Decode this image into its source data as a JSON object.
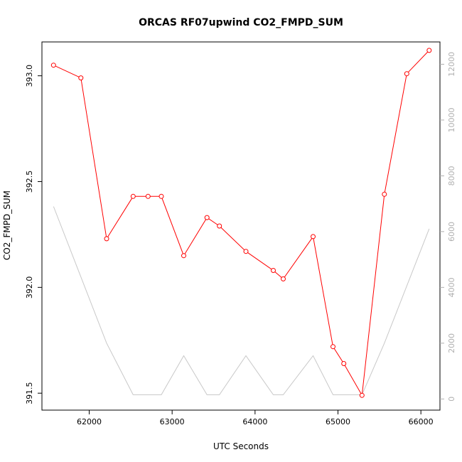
{
  "chart_data": {
    "type": "line",
    "title": "ORCAS RF07upwind CO2_FMPD_SUM",
    "xlabel": "UTC Seconds",
    "ylabel": "CO2_FMPD_SUM",
    "xlim": [
      61430,
      66230
    ],
    "ylim": [
      391.42,
      393.16
    ],
    "y2lim": [
      -400,
      12800
    ],
    "x_ticks": [
      62000,
      63000,
      64000,
      65000,
      66000
    ],
    "y_ticks": [
      391.5,
      392.0,
      392.5,
      393.0
    ],
    "y_tick_labels": [
      "391.5",
      "392.0",
      "392.5",
      "393.0"
    ],
    "y2_ticks": [
      0,
      2000,
      4000,
      6000,
      8000,
      10000,
      12000
    ],
    "grid": false,
    "series": [
      {
        "axis": "left",
        "color": "#ff0000",
        "marker": "open-circle",
        "x": [
          61570,
          61900,
          62210,
          62530,
          62710,
          62870,
          63140,
          63420,
          63570,
          63890,
          64220,
          64340,
          64700,
          64940,
          65070,
          65290,
          65560,
          65830,
          66100
        ],
        "y": [
          393.05,
          392.99,
          392.23,
          392.43,
          392.43,
          392.43,
          392.15,
          392.33,
          392.29,
          392.17,
          392.08,
          392.04,
          392.24,
          391.72,
          391.64,
          391.49,
          392.44,
          393.01,
          393.12
        ]
      },
      {
        "axis": "right",
        "color": "#c8c8c8",
        "marker": "none",
        "x": [
          61570,
          62210,
          62530,
          62870,
          63140,
          63420,
          63570,
          63890,
          64220,
          64340,
          64700,
          64940,
          65290,
          65560,
          66100
        ],
        "y": [
          6900,
          2000,
          150,
          150,
          1550,
          150,
          150,
          1550,
          150,
          150,
          1550,
          150,
          150,
          2000,
          6100
        ]
      }
    ]
  }
}
